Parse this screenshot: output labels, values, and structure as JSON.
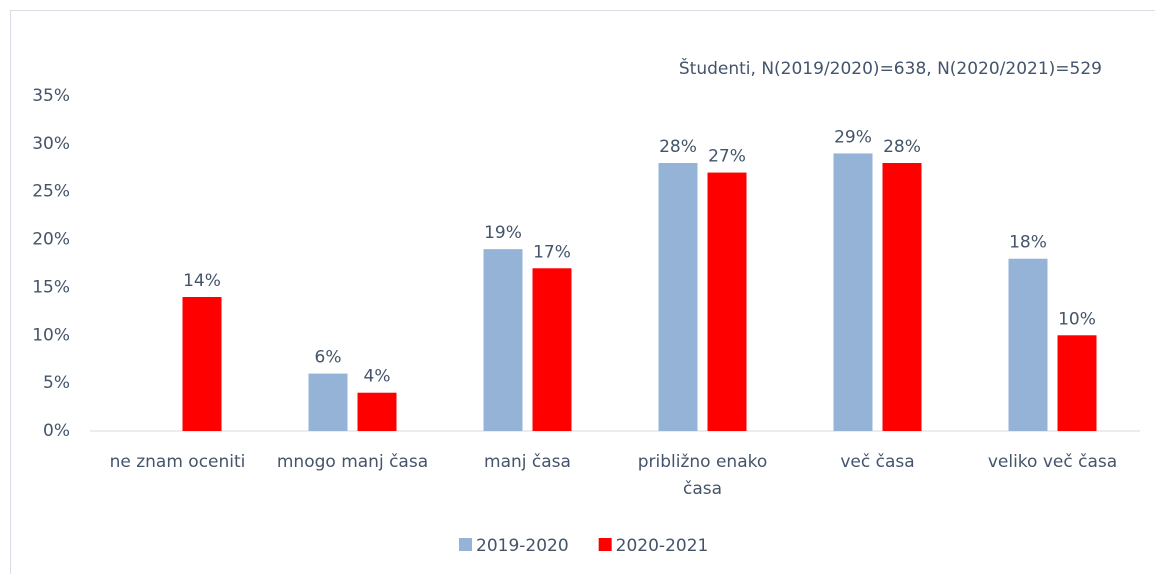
{
  "chart_data": {
    "type": "bar",
    "subtitle": "Študenti, N(2019/2020)=638, N(2020/2021)=529",
    "categories": [
      "ne znam oceniti",
      "mnogo manj časa",
      "manj časa",
      "približno enako časa",
      "več časa",
      "veliko več časa"
    ],
    "series": [
      {
        "name": "2019-2020",
        "color": "#95b3d7",
        "values": [
          null,
          6,
          19,
          28,
          29,
          18
        ],
        "value_labels": [
          null,
          "6%",
          "19%",
          "28%",
          "29%",
          "18%"
        ]
      },
      {
        "name": "2020-2021",
        "color": "#ff0000",
        "values": [
          14,
          4,
          17,
          27,
          28,
          10
        ],
        "value_labels": [
          "14%",
          "4%",
          "17%",
          "27%",
          "28%",
          "10%"
        ]
      }
    ],
    "ylim": [
      0,
      35
    ],
    "yticks": [
      {
        "value": 0,
        "label": "0%"
      },
      {
        "value": 5,
        "label": "5%"
      },
      {
        "value": 10,
        "label": "10%"
      },
      {
        "value": 15,
        "label": "15%"
      },
      {
        "value": 20,
        "label": "20%"
      },
      {
        "value": 25,
        "label": "25%"
      },
      {
        "value": 30,
        "label": "30%"
      },
      {
        "value": 35,
        "label": "35%"
      }
    ],
    "grid": false,
    "legend": "bottom"
  }
}
